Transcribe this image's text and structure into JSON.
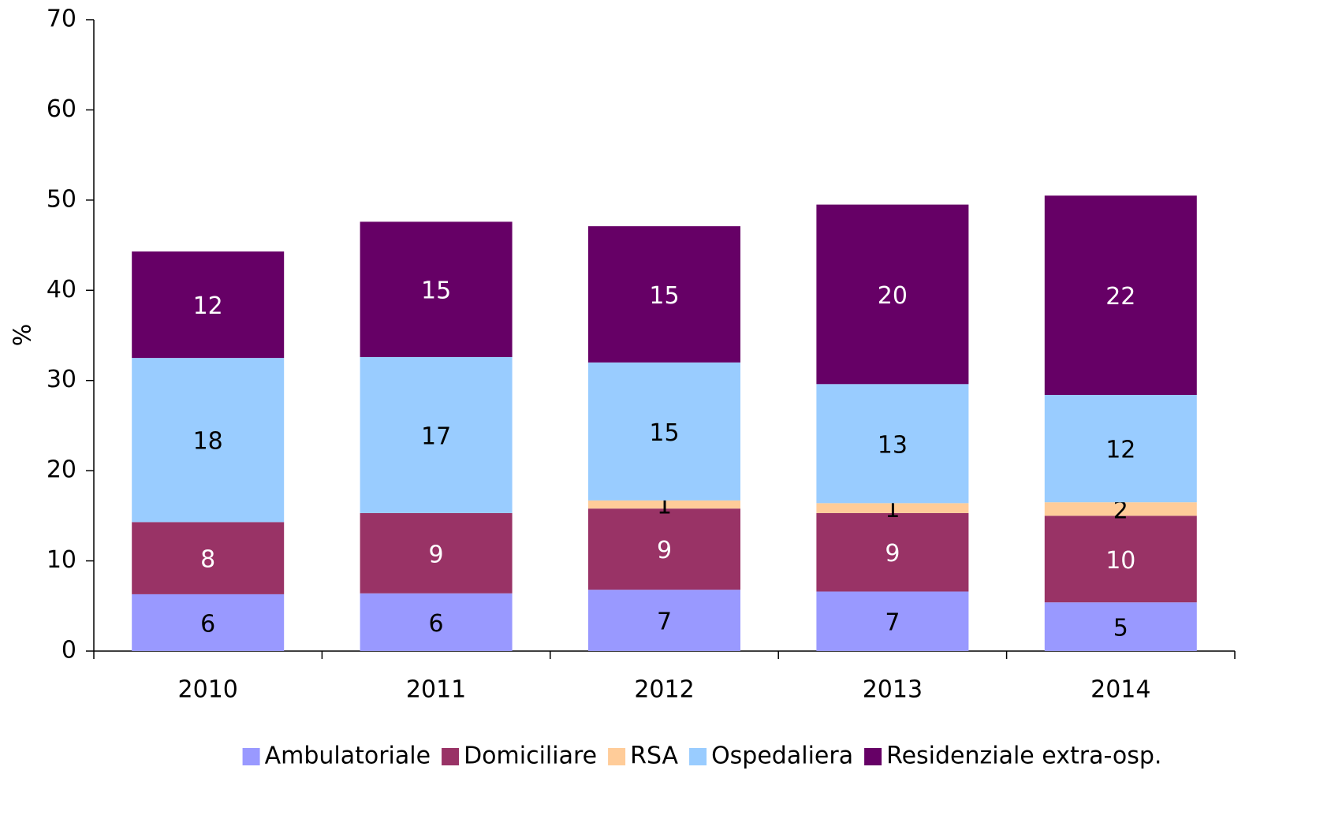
{
  "chart_data": {
    "type": "stacked-bar",
    "categories": [
      "2010",
      "2011",
      "2012",
      "2013",
      "2014"
    ],
    "y_label": "%",
    "ylim": [
      0,
      70
    ],
    "yticks": [
      0,
      10,
      20,
      30,
      40,
      50,
      60,
      70
    ],
    "grid": false,
    "legend": "bottom",
    "series": [
      {
        "name": "Ambulatoriale",
        "color": "#9999ff",
        "values": [
          6.3,
          6.4,
          6.8,
          6.6,
          5.4
        ],
        "value_labels": [
          "6",
          "6",
          "7",
          "7",
          "5"
        ]
      },
      {
        "name": "Domiciliare",
        "color": "#993366",
        "values": [
          8.0,
          8.9,
          9.0,
          8.7,
          9.6
        ],
        "value_labels": [
          "8",
          "9",
          "9",
          "9",
          "10"
        ]
      },
      {
        "name": "RSA",
        "color": "#ffcc99",
        "values": [
          0,
          0,
          0.9,
          1.1,
          1.5
        ],
        "value_labels": [
          null,
          null,
          "1",
          "1",
          "2"
        ]
      },
      {
        "name": "Ospedaliera",
        "color": "#99ccff",
        "values": [
          18.2,
          17.3,
          15.3,
          13.2,
          11.9
        ],
        "value_labels": [
          "18",
          "17",
          "15",
          "13",
          "12"
        ]
      },
      {
        "name": "Residenziale extra-osp.",
        "color": "#660066",
        "values": [
          11.8,
          15.0,
          15.1,
          19.9,
          22.1
        ],
        "value_labels": [
          "12",
          "15",
          "15",
          "20",
          "22"
        ]
      }
    ]
  }
}
